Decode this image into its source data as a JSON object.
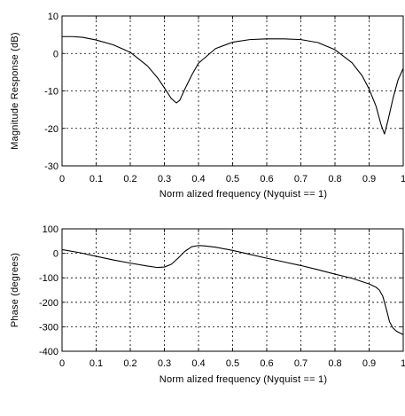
{
  "chart_data": [
    {
      "type": "line",
      "title": "",
      "xlabel": "Norm alized frequency (Nyquist == 1)",
      "ylabel": "Magnitude Response (dB)",
      "xlim": [
        0,
        1
      ],
      "ylim": [
        -30,
        10
      ],
      "x_ticks": [
        0,
        0.1,
        0.2,
        0.3,
        0.4,
        0.5,
        0.6,
        0.7,
        0.8,
        0.9,
        1
      ],
      "x_tick_labels": [
        "0",
        "0.1",
        "0.2",
        "0.3",
        "0.4",
        "0.5",
        "0.6",
        "0.7",
        "0.8",
        "0.9",
        "1"
      ],
      "y_ticks": [
        -30,
        -20,
        -10,
        0,
        10
      ],
      "y_tick_labels": [
        "-30",
        "-20",
        "-10",
        "0",
        "10"
      ],
      "grid": true,
      "series": [
        {
          "x": [
            0,
            0.03,
            0.06,
            0.1,
            0.15,
            0.2,
            0.25,
            0.28,
            0.3,
            0.32,
            0.335,
            0.345,
            0.36,
            0.38,
            0.4,
            0.45,
            0.5,
            0.55,
            0.6,
            0.65,
            0.7,
            0.75,
            0.8,
            0.85,
            0.88,
            0.9,
            0.92,
            0.935,
            0.945,
            0.955,
            0.97,
            0.985,
            1
          ],
          "y": [
            4.5,
            4.5,
            4.3,
            3.6,
            2.3,
            0.3,
            -3.3,
            -6.5,
            -9.2,
            -12,
            -13.2,
            -12.5,
            -9.5,
            -5.8,
            -2.6,
            1.3,
            3.0,
            3.7,
            3.9,
            3.9,
            3.7,
            2.9,
            1.0,
            -2.5,
            -6.0,
            -9.5,
            -14,
            -19,
            -21.5,
            -18,
            -12,
            -7,
            -4
          ]
        }
      ]
    },
    {
      "type": "line",
      "title": "",
      "xlabel": "Norm alized frequency (Nyquist == 1)",
      "ylabel": "Phase (degrees)",
      "xlim": [
        0,
        1
      ],
      "ylim": [
        -400,
        100
      ],
      "x_ticks": [
        0,
        0.1,
        0.2,
        0.3,
        0.4,
        0.5,
        0.6,
        0.7,
        0.8,
        0.9,
        1
      ],
      "x_tick_labels": [
        "0",
        "0.1",
        "0.2",
        "0.3",
        "0.4",
        "0.5",
        "0.6",
        "0.7",
        "0.8",
        "0.9",
        "1"
      ],
      "y_ticks": [
        -400,
        -300,
        -200,
        -100,
        0,
        100
      ],
      "y_tick_labels": [
        "-400",
        "-300",
        "-200",
        "-100",
        "0",
        "100"
      ],
      "grid": true,
      "series": [
        {
          "x": [
            0,
            0.05,
            0.1,
            0.15,
            0.2,
            0.25,
            0.28,
            0.3,
            0.32,
            0.34,
            0.36,
            0.38,
            0.4,
            0.42,
            0.45,
            0.5,
            0.55,
            0.6,
            0.65,
            0.7,
            0.75,
            0.8,
            0.85,
            0.9,
            0.92,
            0.93,
            0.94,
            0.95,
            0.96,
            0.97,
            0.98,
            1
          ],
          "y": [
            15,
            3,
            -12,
            -27,
            -40,
            -52,
            -58,
            -56,
            -45,
            -20,
            8,
            27,
            32,
            30,
            25,
            12,
            -4,
            -20,
            -35,
            -50,
            -67,
            -85,
            -102,
            -125,
            -138,
            -150,
            -175,
            -225,
            -280,
            -305,
            -318,
            -332
          ]
        }
      ]
    }
  ]
}
